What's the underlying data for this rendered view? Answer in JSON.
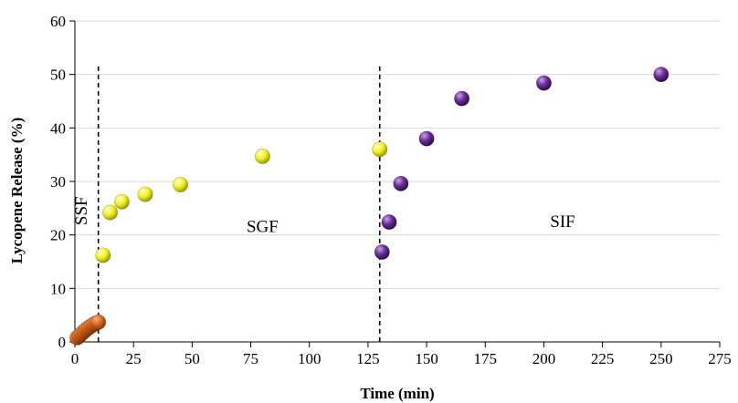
{
  "chart_data": {
    "type": "scatter",
    "xlabel": "Time (min)",
    "ylabel": "Lycopene Release (%)",
    "xlim": [
      0,
      275
    ],
    "ylim": [
      0,
      60
    ],
    "x_ticks": [
      "0",
      "25",
      "50",
      "75",
      "100",
      "125",
      "150",
      "175",
      "200",
      "225",
      "250",
      "275"
    ],
    "y_ticks": [
      "0",
      "10",
      "20",
      "30",
      "40",
      "50",
      "60"
    ],
    "grid": "horizontal",
    "series": [
      {
        "color": "#d9641c",
        "x": [
          1,
          2,
          3,
          4,
          5,
          6,
          7,
          8,
          9,
          10
        ],
        "y": [
          0.8,
          1.2,
          1.6,
          2.0,
          2.4,
          2.7,
          3.0,
          3.3,
          3.5,
          3.7
        ]
      },
      {
        "color": "#eef01c",
        "x": [
          12,
          15,
          20,
          30,
          45,
          80,
          130
        ],
        "y": [
          16.2,
          24.2,
          26.2,
          27.6,
          29.4,
          34.7,
          36.0
        ]
      },
      {
        "color": "#6b2e9c",
        "x": [
          131,
          134,
          139,
          150,
          165,
          200,
          250
        ],
        "y": [
          16.8,
          22.4,
          29.6,
          38.0,
          45.5,
          48.4,
          50.0
        ]
      }
    ],
    "phase_lines_x": [
      10,
      130
    ],
    "regions": [
      {
        "label": "SSF",
        "x": 5,
        "y": 24.5,
        "rotated": true
      },
      {
        "label": "SGF",
        "x": 80,
        "y": 20.5,
        "rotated": false
      },
      {
        "label": "SIF",
        "x": 208,
        "y": 21.5,
        "rotated": false
      }
    ]
  }
}
